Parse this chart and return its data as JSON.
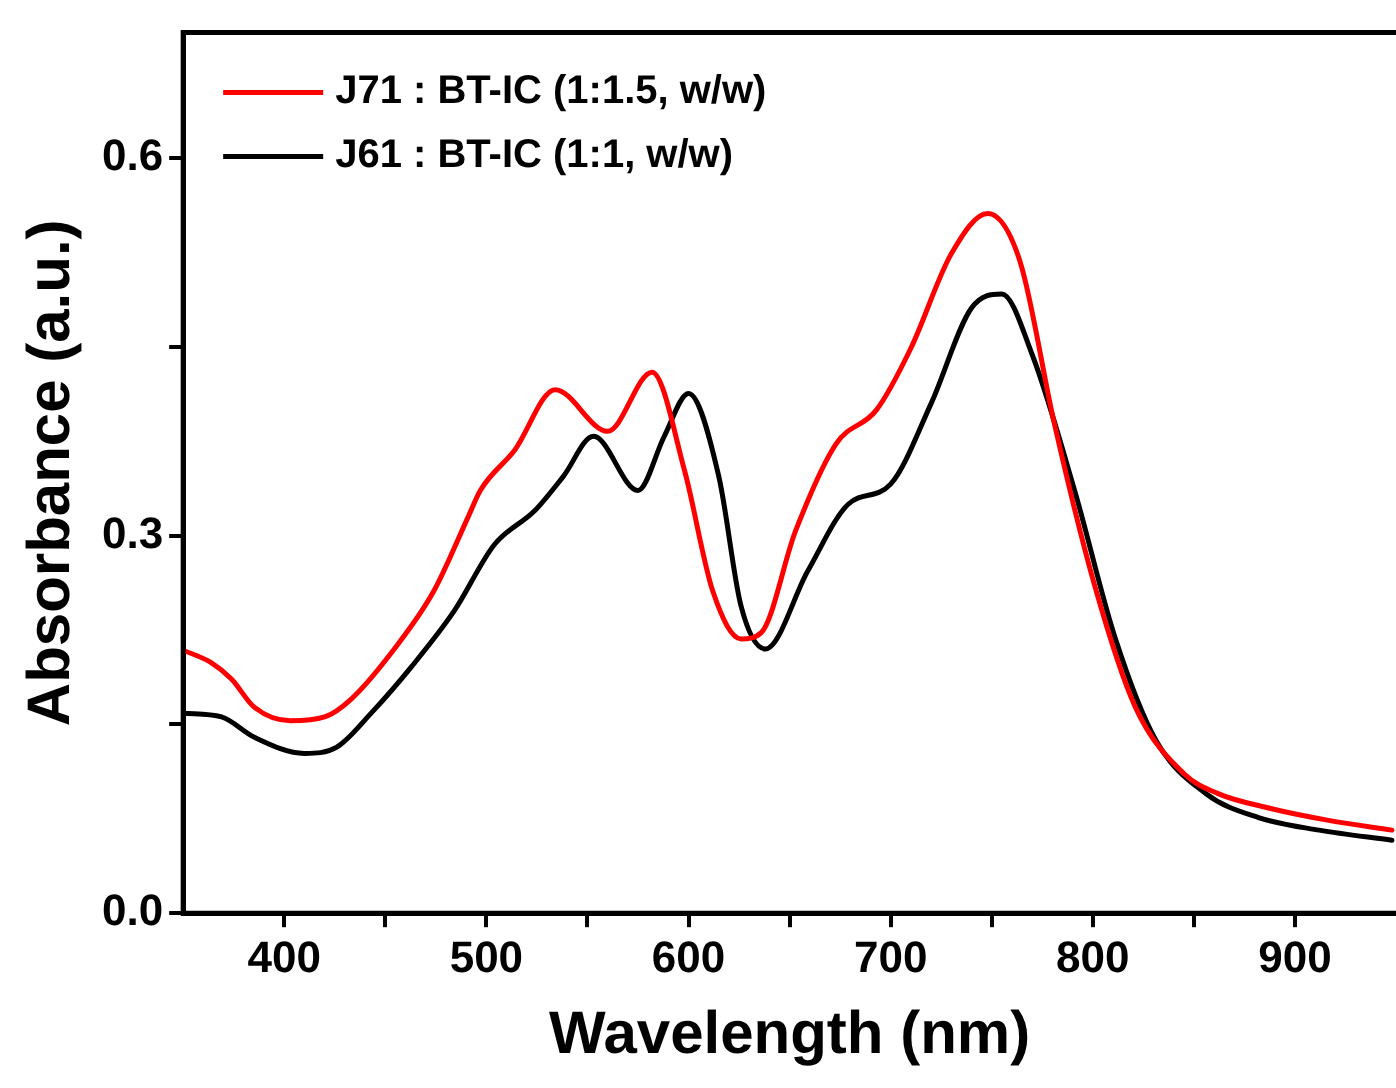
{
  "chart_data": {
    "type": "line",
    "xlabel": "Wavelength (nm)",
    "ylabel": "Absorbance (a.u.)",
    "xlim": [
      350,
      950
    ],
    "ylim": [
      0,
      0.7
    ],
    "xticks": [
      400,
      {
        "value": 450,
        "label": null
      },
      500,
      {
        "value": 550,
        "label": null
      },
      600,
      {
        "value": 650,
        "label": null
      },
      700,
      {
        "value": 750,
        "label": null
      },
      800,
      {
        "value": 850,
        "label": null
      },
      900
    ],
    "yticks": [
      {
        "value": 0,
        "label": "0.0"
      },
      {
        "value": 0.15,
        "label": null
      },
      0.3,
      {
        "value": 0.45,
        "label": null
      },
      0.6
    ],
    "grid": false,
    "legend": "top left",
    "marker": "none",
    "line_style": "solid",
    "series": [
      {
        "name": "J71 : BT-IC (1:1.5, w/w)",
        "color": "#ff0000",
        "x": [
          350,
          364,
          374,
          385,
          403,
          420,
          433,
          453,
          474,
          491,
          497,
          514,
          534,
          560,
          582,
          598,
          612,
          626,
          636,
          653,
          673,
          693,
          710,
          730,
          748,
          764,
          781,
          801,
          821,
          845,
          862,
          886,
          916,
          948
        ],
        "values": [
          0.209,
          0.199,
          0.186,
          0.164,
          0.153,
          0.156,
          0.17,
          0.207,
          0.256,
          0.315,
          0.336,
          0.368,
          0.416,
          0.383,
          0.43,
          0.352,
          0.256,
          0.218,
          0.223,
          0.304,
          0.373,
          0.4,
          0.449,
          0.524,
          0.556,
          0.518,
          0.389,
          0.26,
          0.164,
          0.111,
          0.095,
          0.084,
          0.074,
          0.066
        ]
      },
      {
        "name": "J61 : BT-IC (1:1, w/w)",
        "color": "#000000",
        "x": [
          350,
          369,
          385,
          410,
          426,
          443,
          463,
          484,
          504,
          524,
          538,
          553,
          575,
          588,
          600,
          615,
          626,
          638,
          659,
          679,
          700,
          720,
          740,
          755,
          770,
          791,
          811,
          831,
          856,
          882,
          912,
          948
        ],
        "values": [
          0.159,
          0.156,
          0.14,
          0.127,
          0.132,
          0.159,
          0.196,
          0.24,
          0.293,
          0.32,
          0.347,
          0.379,
          0.336,
          0.379,
          0.413,
          0.347,
          0.244,
          0.21,
          0.272,
          0.325,
          0.341,
          0.405,
          0.481,
          0.492,
          0.444,
          0.336,
          0.219,
          0.138,
          0.095,
          0.076,
          0.066,
          0.058
        ]
      }
    ]
  }
}
